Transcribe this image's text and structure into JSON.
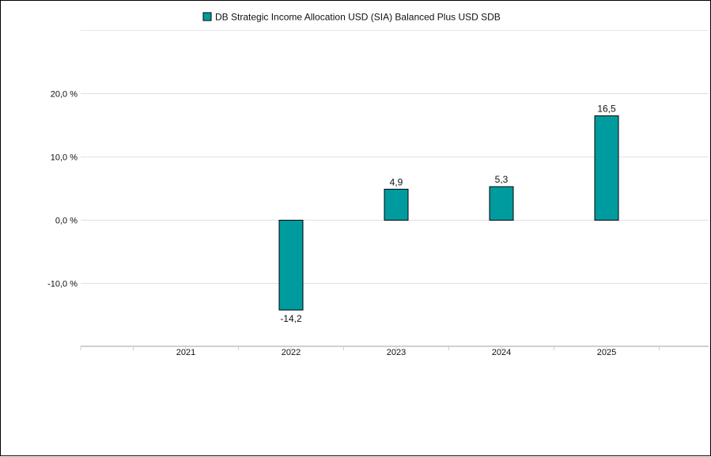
{
  "chart_data": {
    "type": "bar",
    "categories": [
      "2021",
      "2022",
      "2023",
      "2024",
      "2025"
    ],
    "series": [
      {
        "name": "DB Strategic Income Allocation USD (SIA) Balanced Plus USD SDB",
        "values": [
          null,
          -14.2,
          4.9,
          5.3,
          16.5
        ],
        "data_labels": [
          "",
          "-14,2",
          "4,9",
          "5,3",
          "16,5"
        ],
        "color": "#009b9e"
      }
    ],
    "yticks": [
      {
        "value": 20,
        "label": "20,0 %"
      },
      {
        "value": 10,
        "label": "10,0 %"
      },
      {
        "value": 0,
        "label": "0,0 %"
      },
      {
        "value": -10,
        "label": "-10,0 %"
      }
    ],
    "ylim": [
      -20,
      30
    ],
    "grid": true,
    "legend": "top-center"
  }
}
